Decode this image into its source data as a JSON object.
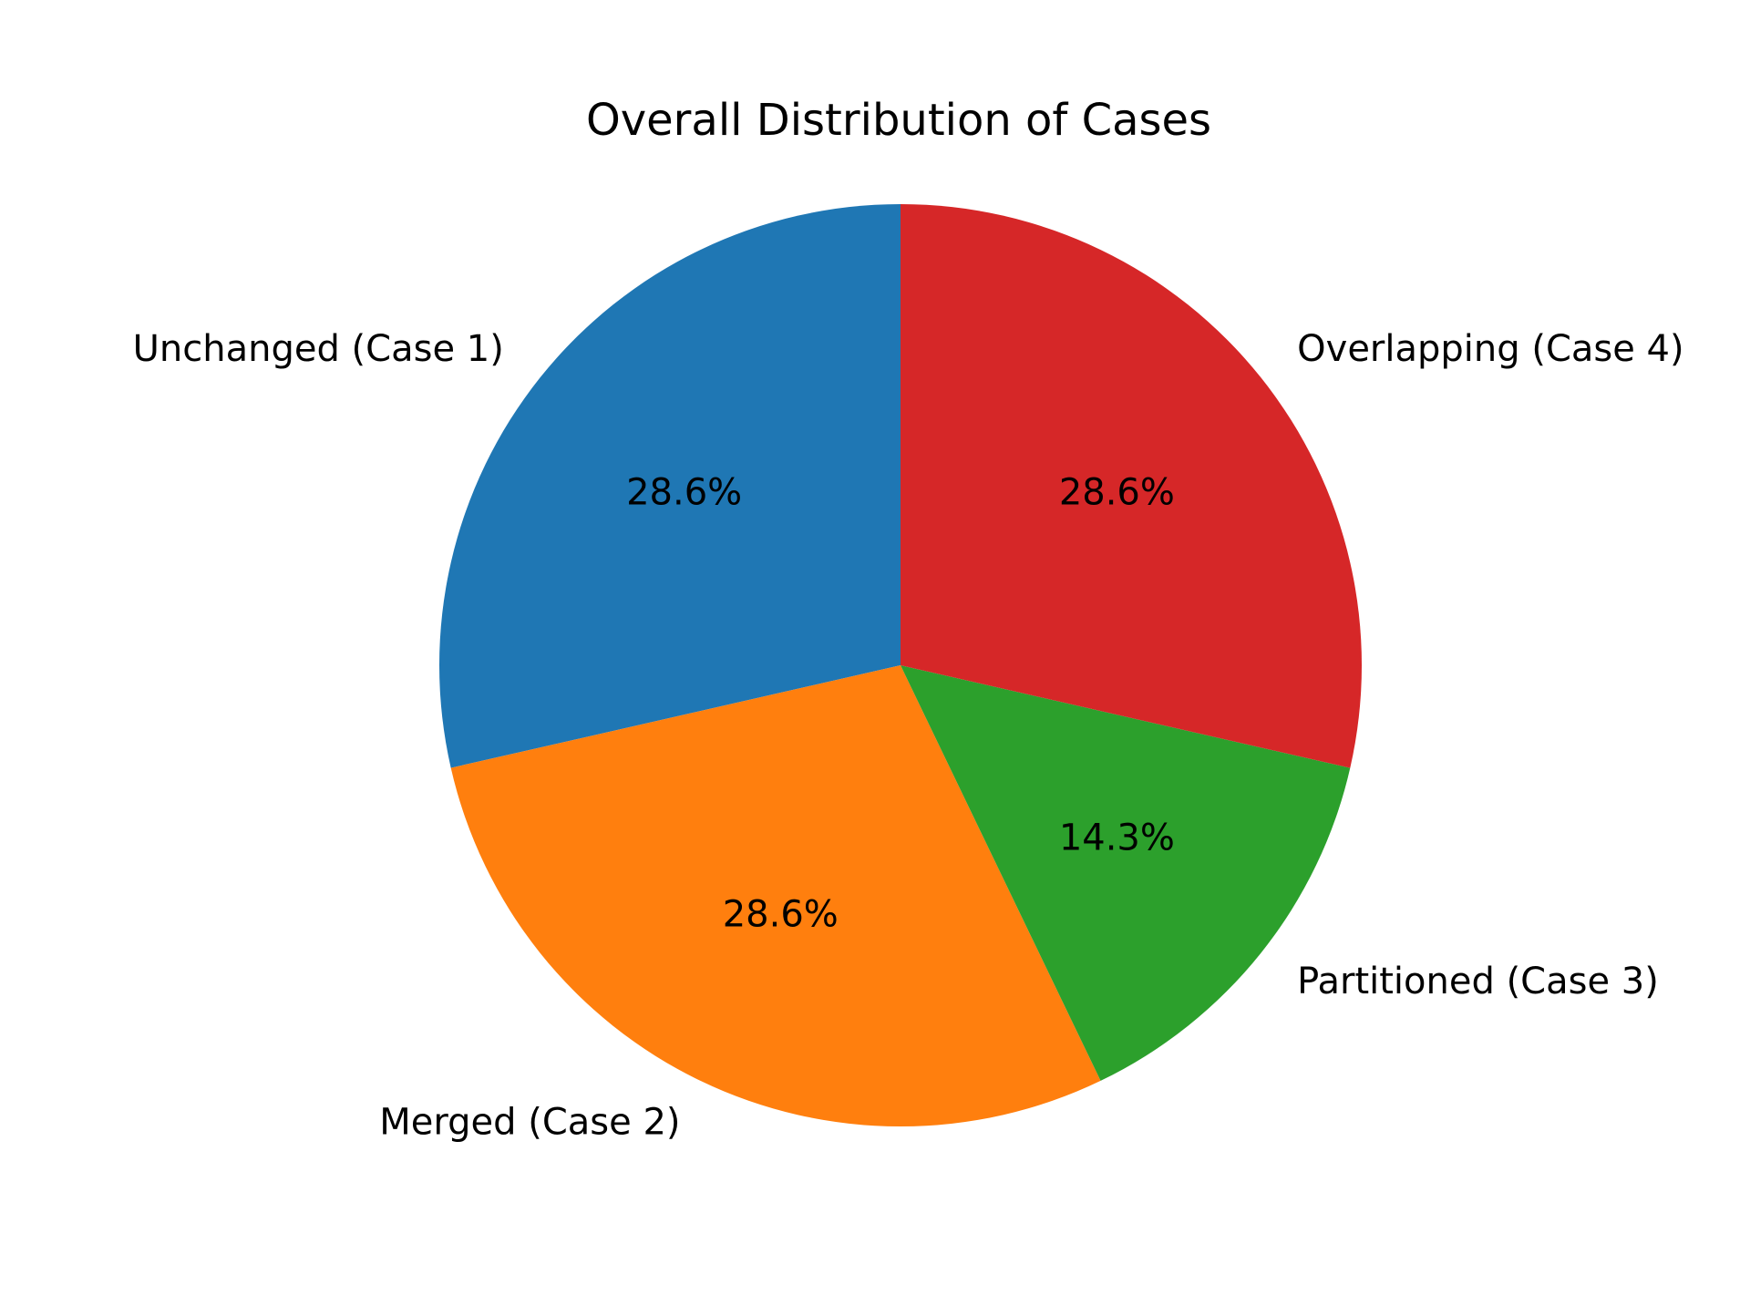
{
  "chart_data": {
    "type": "pie",
    "title": "Overall Distribution of Cases",
    "start_angle_deg": 90,
    "direction": "counterclockwise",
    "slices": [
      {
        "label": "Unchanged (Case 1)",
        "value": 28.6,
        "pct_label": "28.6%",
        "color": "#1f77b4"
      },
      {
        "label": "Merged (Case 2)",
        "value": 28.6,
        "pct_label": "28.6%",
        "color": "#ff7f0e"
      },
      {
        "label": "Partitioned (Case 3)",
        "value": 14.3,
        "pct_label": "14.3%",
        "color": "#2ca02c"
      },
      {
        "label": "Overlapping (Case 4)",
        "value": 28.6,
        "pct_label": "28.6%",
        "color": "#d62728"
      }
    ]
  }
}
